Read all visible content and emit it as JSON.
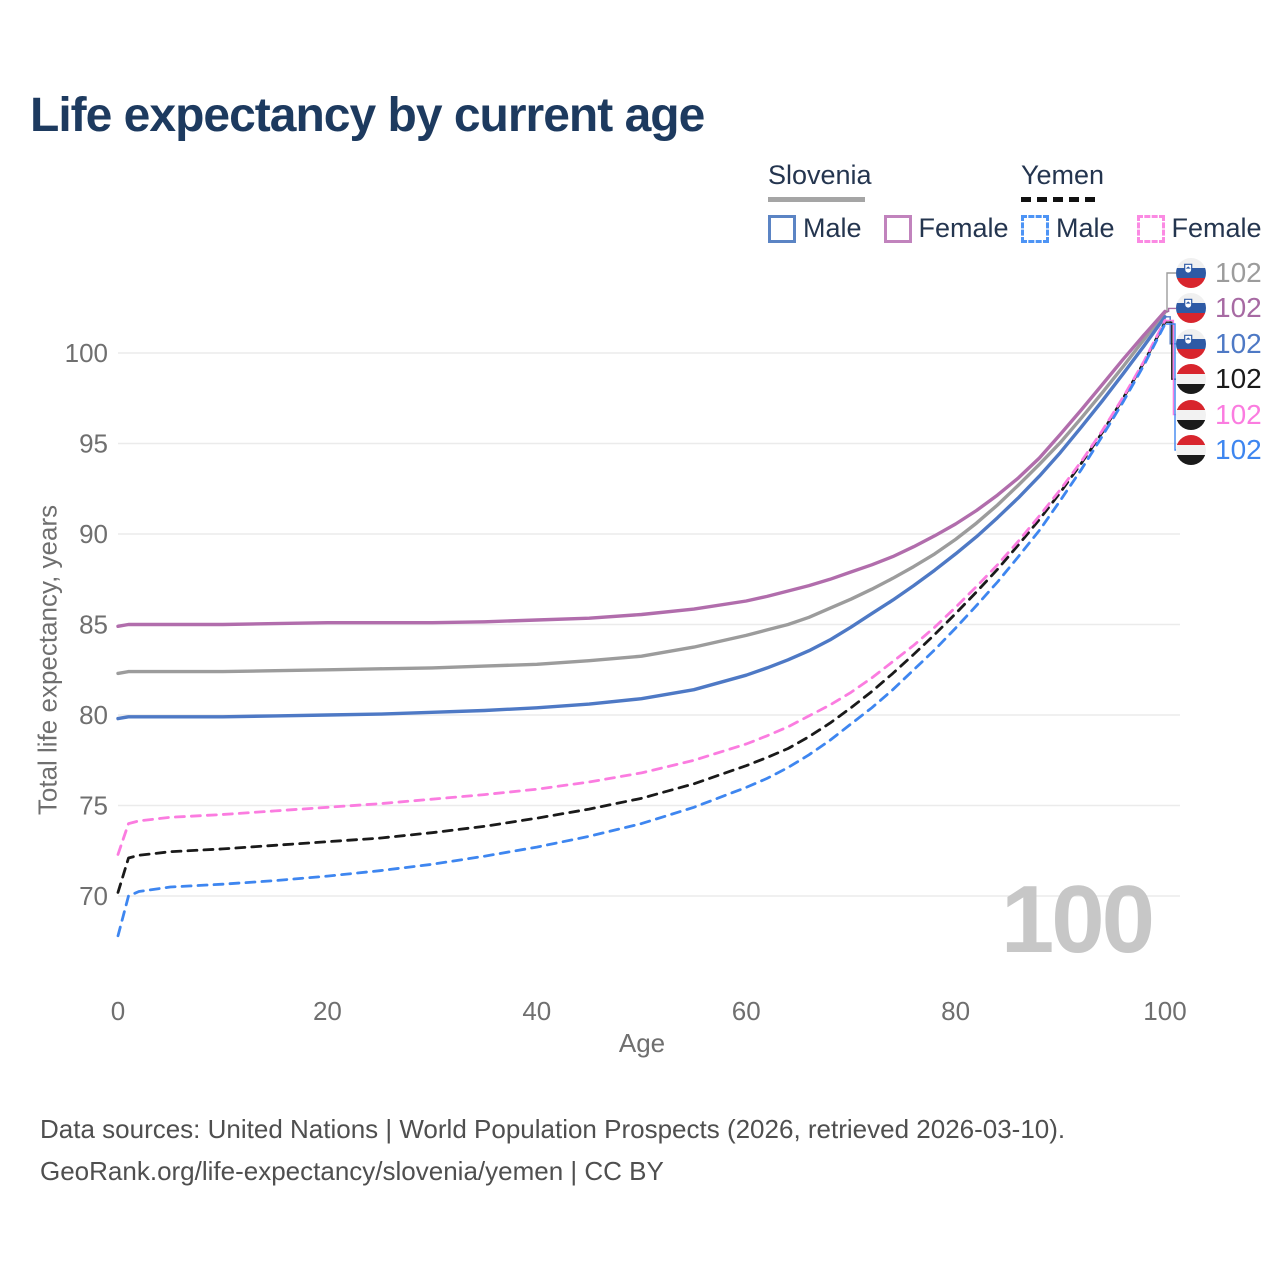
{
  "title": "Life expectancy by current age",
  "legend": {
    "groups": [
      {
        "country": "Slovenia",
        "line_style": "solid",
        "underline_color": "#a5a5a5",
        "items": [
          {
            "label": "Male",
            "box_color": "#5b84c4",
            "box_style": "solid"
          },
          {
            "label": "Female",
            "box_color": "#c183bd",
            "box_style": "solid"
          }
        ]
      },
      {
        "country": "Yemen",
        "line_style": "dashed",
        "underline_color": "#111111",
        "items": [
          {
            "label": "Male",
            "box_color": "#4d94f5",
            "box_style": "dashed"
          },
          {
            "label": "Female",
            "box_color": "#fb8ae3",
            "box_style": "dashed"
          }
        ]
      }
    ]
  },
  "end_labels": [
    {
      "flag": "slovenia",
      "value": "102",
      "color": "#9c9c9c",
      "series_index": 0
    },
    {
      "flag": "slovenia",
      "value": "102",
      "color": "#a76aa3",
      "series_index": 1
    },
    {
      "flag": "slovenia",
      "value": "102",
      "color": "#4e79c5",
      "series_index": 2
    },
    {
      "flag": "yemen",
      "value": "102",
      "color": "#1a1a1a",
      "series_index": 3
    },
    {
      "flag": "yemen",
      "value": "102",
      "color": "#fb7ce0",
      "series_index": 4
    },
    {
      "flag": "yemen",
      "value": "102",
      "color": "#3e86f0",
      "series_index": 5
    }
  ],
  "watermark": "100",
  "footer": {
    "line1": "Data sources: United Nations | World Population Prospects (2026, retrieved 2026-03-10).",
    "line2": "GeoRank.org/life-expectancy/slovenia/yemen | CC BY"
  },
  "chart_data": {
    "type": "line",
    "title": "Life expectancy by current age",
    "xlabel": "Age",
    "ylabel": "Total life expectancy, years",
    "x_ticks": [
      0,
      20,
      40,
      60,
      80,
      100
    ],
    "y_ticks": [
      70,
      75,
      80,
      85,
      90,
      95,
      100
    ],
    "xlim": [
      0,
      100
    ],
    "ylim": [
      65.5,
      103.2
    ],
    "grid": "horizontal-only",
    "legend_position": "top-right",
    "x": [
      0,
      1,
      2,
      5,
      10,
      15,
      20,
      25,
      30,
      35,
      40,
      45,
      50,
      55,
      60,
      62,
      64,
      66,
      68,
      70,
      72,
      74,
      76,
      78,
      80,
      82,
      84,
      86,
      88,
      90,
      92,
      94,
      96,
      98,
      100
    ],
    "series": [
      {
        "id": "slovenia-both",
        "name": "Slovenia Both sexes",
        "country": "Slovenia",
        "style": "solid",
        "color": "#9c9c9c",
        "values": [
          82.3,
          82.4,
          82.4,
          82.4,
          82.4,
          82.45,
          82.5,
          82.55,
          82.6,
          82.7,
          82.8,
          83.0,
          83.25,
          83.75,
          84.4,
          84.7,
          85.0,
          85.4,
          85.9,
          86.4,
          86.95,
          87.55,
          88.2,
          88.9,
          89.7,
          90.6,
          91.6,
          92.7,
          93.85,
          95.05,
          96.4,
          97.8,
          99.25,
          100.75,
          102.25
        ]
      },
      {
        "id": "slovenia-female",
        "name": "Slovenia Female",
        "country": "Slovenia",
        "style": "solid",
        "color": "#b16dac",
        "values": [
          84.9,
          85.0,
          85.0,
          85.0,
          85.0,
          85.05,
          85.1,
          85.1,
          85.1,
          85.15,
          85.25,
          85.35,
          85.55,
          85.85,
          86.3,
          86.55,
          86.85,
          87.15,
          87.5,
          87.9,
          88.3,
          88.75,
          89.3,
          89.9,
          90.55,
          91.3,
          92.15,
          93.1,
          94.2,
          95.5,
          96.85,
          98.25,
          99.65,
          101.0,
          102.3
        ]
      },
      {
        "id": "slovenia-male",
        "name": "Slovenia Male",
        "country": "Slovenia",
        "style": "solid",
        "color": "#4e79c5",
        "values": [
          79.8,
          79.9,
          79.9,
          79.9,
          79.9,
          79.95,
          80.0,
          80.05,
          80.15,
          80.25,
          80.4,
          80.6,
          80.9,
          81.4,
          82.2,
          82.6,
          83.05,
          83.55,
          84.15,
          84.85,
          85.6,
          86.35,
          87.15,
          88.0,
          88.9,
          89.85,
          90.9,
          92.0,
          93.2,
          94.5,
          95.9,
          97.35,
          98.85,
          100.4,
          102.0
        ]
      },
      {
        "id": "yemen-both",
        "name": "Yemen Both sexes",
        "country": "Yemen",
        "style": "dashed",
        "color": "#1a1a1a",
        "values": [
          70.2,
          72.1,
          72.25,
          72.45,
          72.6,
          72.8,
          73.0,
          73.2,
          73.5,
          73.85,
          74.3,
          74.8,
          75.4,
          76.2,
          77.2,
          77.65,
          78.15,
          78.8,
          79.55,
          80.4,
          81.3,
          82.3,
          83.35,
          84.45,
          85.6,
          86.8,
          88.05,
          89.4,
          90.8,
          92.3,
          93.9,
          95.6,
          97.5,
          99.5,
          101.7
        ]
      },
      {
        "id": "yemen-female",
        "name": "Yemen Female",
        "country": "Yemen",
        "style": "dashed",
        "color": "#fb7ce0",
        "values": [
          72.3,
          74.0,
          74.15,
          74.35,
          74.5,
          74.7,
          74.9,
          75.1,
          75.35,
          75.6,
          75.9,
          76.3,
          76.8,
          77.5,
          78.4,
          78.85,
          79.35,
          79.95,
          80.55,
          81.25,
          82.05,
          82.95,
          83.85,
          84.85,
          85.95,
          87.1,
          88.3,
          89.6,
          91.0,
          92.45,
          94.0,
          95.7,
          97.55,
          99.55,
          101.8
        ]
      },
      {
        "id": "yemen-male",
        "name": "Yemen Male",
        "country": "Yemen",
        "style": "dashed",
        "color": "#3e86f0",
        "values": [
          67.8,
          70.0,
          70.25,
          70.5,
          70.65,
          70.85,
          71.1,
          71.4,
          71.75,
          72.2,
          72.7,
          73.3,
          74.0,
          74.9,
          76.0,
          76.5,
          77.1,
          77.8,
          78.6,
          79.5,
          80.4,
          81.4,
          82.5,
          83.6,
          84.8,
          86.05,
          87.35,
          88.75,
          90.2,
          91.85,
          93.55,
          95.4,
          97.3,
          99.35,
          101.6
        ]
      }
    ]
  }
}
